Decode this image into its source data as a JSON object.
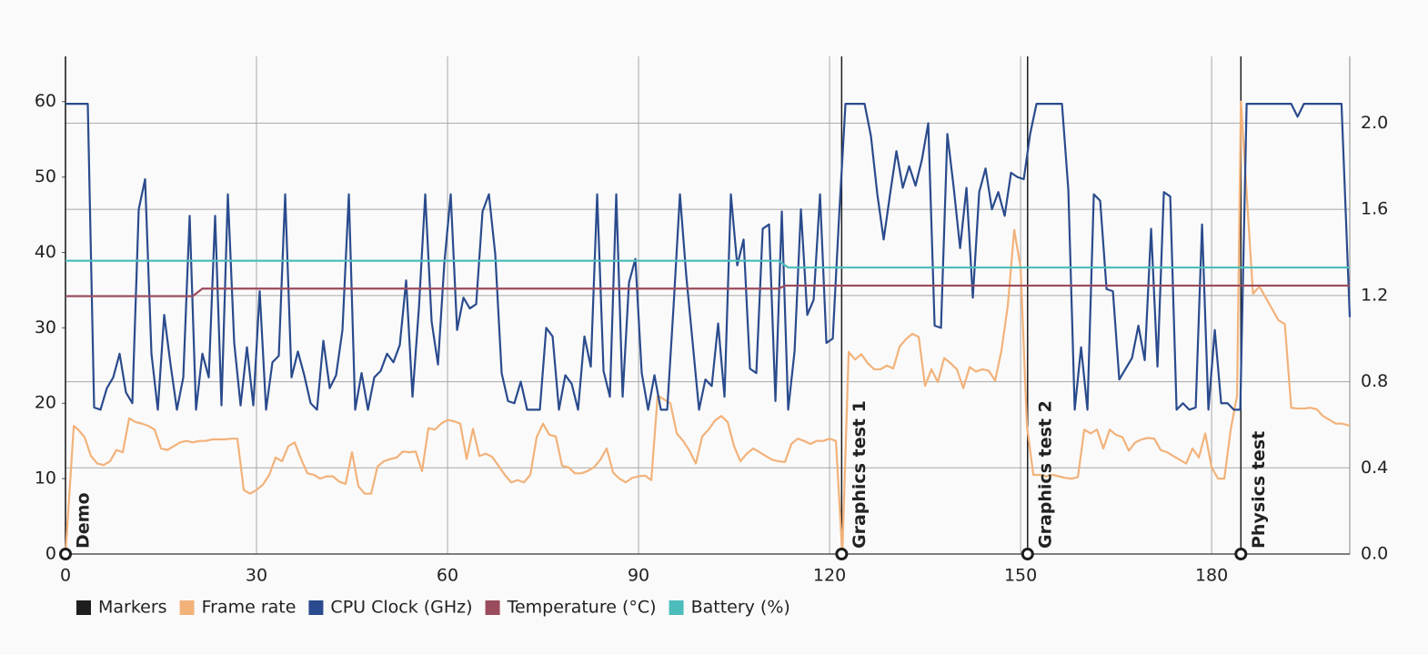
{
  "chart_data": {
    "type": "line",
    "xlim": [
      0,
      201.7
    ],
    "xticks": [
      0,
      30,
      60,
      90,
      120,
      150,
      180
    ],
    "ylim": [
      0,
      66
    ],
    "yticks": [
      0,
      10,
      20,
      30,
      40,
      50,
      60
    ],
    "y2lim": [
      0,
      2.31
    ],
    "y2ticks": [
      {
        "value": 0,
        "label": "0.0"
      },
      {
        "value": 0.4,
        "label": "0.4"
      },
      {
        "value": 0.8,
        "label": "0.8"
      },
      {
        "value": 1.2,
        "label": "1.2"
      },
      {
        "value": 1.6,
        "label": "1.6"
      },
      {
        "value": 2.0,
        "label": "2.0"
      }
    ],
    "grid": true,
    "markers": {
      "name": "Markers",
      "color": "#1e1e1e",
      "x": [
        0,
        121.9,
        151.1,
        184.6
      ],
      "labels": [
        "Demo",
        "Graphics test 1",
        "Graphics test 2",
        "Physics test"
      ]
    },
    "series": [
      {
        "name": "Frame rate",
        "color": "#f2b27a",
        "axis": "y",
        "x": [
          0,
          1.3,
          2,
          3,
          4,
          5,
          6,
          7,
          8,
          9,
          10,
          11,
          12,
          13,
          14,
          15,
          16,
          17,
          18,
          19,
          20,
          21,
          22,
          23,
          24,
          25,
          26,
          27,
          28,
          29,
          30,
          31,
          32,
          33,
          34,
          35,
          36,
          37,
          38,
          39,
          40,
          41,
          42,
          43,
          44,
          45,
          46,
          47,
          48,
          49,
          50,
          51,
          52,
          53,
          54,
          55,
          56,
          57,
          58,
          59,
          60,
          61,
          62,
          63,
          64,
          65,
          66,
          67,
          68,
          69,
          70,
          71,
          72,
          73,
          74,
          75,
          76,
          77,
          78,
          79,
          80,
          81,
          82,
          83,
          84,
          85,
          86,
          87,
          88,
          89,
          90,
          91,
          92,
          93,
          94,
          95,
          96,
          97,
          98,
          99,
          100,
          101,
          102,
          103,
          104,
          105,
          106,
          107,
          108,
          109,
          110,
          111,
          112,
          113,
          114,
          115,
          116,
          117,
          118,
          119,
          120,
          121,
          122,
          123,
          124,
          125,
          126,
          127,
          128,
          129,
          130,
          131,
          132,
          133,
          134,
          135,
          136,
          137,
          138,
          139,
          140,
          141,
          142,
          143,
          144,
          145,
          146,
          147,
          148,
          149,
          150,
          151,
          152,
          153,
          154,
          155,
          156,
          157,
          158,
          159,
          160,
          161,
          162,
          163,
          164,
          165,
          166,
          167,
          168,
          169,
          170,
          171,
          172,
          173,
          174,
          175,
          176,
          177,
          178,
          179,
          180,
          181,
          182,
          183,
          184,
          184.6,
          186.5,
          187.5,
          188.5,
          189.5,
          190.5,
          191.5,
          192.5,
          193.5,
          194.5,
          195.5,
          196.5,
          197.5,
          198.5,
          199.5,
          200.5,
          201.7
        ],
        "values": [
          0,
          17,
          16.5,
          15.5,
          13,
          12,
          11.8,
          12.3,
          13.8,
          13.5,
          18,
          17.5,
          17.3,
          17,
          16.5,
          14,
          13.8,
          14.3,
          14.8,
          15,
          14.8,
          15,
          15,
          15.2,
          15.2,
          15.2,
          15.3,
          15.3,
          8.5,
          8,
          8.5,
          9.2,
          10.5,
          12.8,
          12.3,
          14.3,
          14.8,
          12.6,
          10.7,
          10.5,
          10,
          10.3,
          10.3,
          9.6,
          9.3,
          13.5,
          9,
          8,
          8,
          11.6,
          12.3,
          12.6,
          12.8,
          13.6,
          13.5,
          13.6,
          11,
          16.7,
          16.5,
          17.3,
          17.8,
          17.6,
          17.3,
          12.6,
          16.6,
          13,
          13.3,
          12.9,
          11.7,
          10.5,
          9.5,
          9.8,
          9.5,
          10.5,
          15.5,
          17.3,
          15.8,
          15.6,
          11.7,
          11.5,
          10.7,
          10.7,
          11,
          11.5,
          12.5,
          14,
          10.8,
          10,
          9.5,
          10.1,
          10.3,
          10.4,
          9.8,
          21,
          20.5,
          20,
          16,
          15,
          13.7,
          12,
          15.6,
          16.5,
          17.7,
          18.3,
          17.5,
          14.3,
          12.3,
          13.3,
          14,
          13.5,
          13,
          12.5,
          12.3,
          12.2,
          14.6,
          15.3,
          15,
          14.6,
          15,
          15,
          15.3,
          15,
          0,
          26.8,
          25.8,
          26.5,
          25.3,
          24.5,
          24.5,
          25,
          24.6,
          27.5,
          28.5,
          29.2,
          28.8,
          22.3,
          24.5,
          22.8,
          26,
          25.3,
          24.5,
          22,
          24.8,
          24.2,
          24.5,
          24.3,
          23,
          27,
          33,
          43,
          38,
          17,
          10.5,
          10.5,
          10.3,
          10.5,
          10.3,
          10.1,
          10,
          10.2,
          16.5,
          16,
          16.5,
          14,
          16.5,
          15.8,
          15.5,
          13.7,
          14.8,
          15.2,
          15.4,
          15.3,
          13.8,
          13.5,
          13,
          12.5,
          12,
          14,
          12.8,
          16,
          11.5,
          10,
          10,
          16.5,
          21,
          60,
          34.5,
          35.5,
          34,
          32.5,
          31,
          30.5,
          19.4,
          19.3,
          19.3,
          19.4,
          19.2,
          18.3,
          17.8,
          17.3,
          17.3,
          17
        ]
      },
      {
        "name": "CPU Clock (GHz)",
        "color": "#2a4b8d",
        "axis": "y2",
        "x": [
          0,
          3.5,
          4.5,
          5.5,
          6.5,
          7.5,
          8.5,
          9.5,
          10.5,
          11.5,
          12.5,
          13.5,
          14.5,
          15.5,
          16.5,
          17.5,
          18.5,
          19.5,
          20.5,
          21.5,
          22.5,
          23.5,
          24.5,
          25.5,
          26.5,
          27.5,
          28.5,
          29.5,
          30.5,
          31.5,
          32.5,
          33.5,
          34.5,
          35.5,
          36.5,
          37.5,
          38.5,
          39.5,
          40.5,
          41.5,
          42.5,
          43.5,
          44.5,
          45.5,
          46.5,
          47.5,
          48.5,
          49.5,
          50.5,
          51.5,
          52.5,
          53.5,
          54.5,
          55.5,
          56.5,
          57.5,
          58.5,
          59.5,
          60.5,
          61.5,
          62.5,
          63.5,
          64.5,
          65.5,
          66.5,
          67.5,
          68.5,
          69.5,
          70.5,
          71.5,
          72.5,
          73.5,
          74.5,
          75.5,
          76.5,
          77.5,
          78.5,
          79.5,
          80.5,
          81.5,
          82.5,
          83.5,
          84.5,
          85.5,
          86.5,
          87.5,
          88.5,
          89.5,
          90.5,
          91.5,
          92.5,
          93.5,
          94.5,
          95.5,
          96.5,
          97.5,
          98.5,
          99.5,
          100.5,
          101.5,
          102.5,
          103.5,
          104.5,
          105.5,
          106.5,
          107.5,
          108.5,
          109.5,
          110.5,
          111.5,
          112.5,
          113.5,
          114.5,
          115.5,
          116.5,
          117.5,
          118.5,
          119.5,
          120.5,
          121.5,
          122.5,
          125.5,
          126.5,
          127.5,
          128.5,
          129.5,
          130.5,
          131.5,
          132.5,
          133.5,
          134.5,
          135.5,
          136.5,
          137.5,
          138.5,
          139.5,
          140.5,
          141.5,
          142.5,
          143.5,
          144.5,
          145.5,
          146.5,
          147.5,
          148.5,
          149.5,
          150.5,
          151.5,
          152.5,
          156.5,
          157.5,
          158.5,
          159.5,
          160.5,
          161.5,
          162.5,
          163.5,
          164.5,
          165.5,
          166.5,
          167.5,
          168.5,
          169.5,
          170.5,
          171.5,
          172.5,
          173.5,
          174.5,
          175.5,
          176.5,
          177.5,
          178.5,
          179.5,
          180.5,
          181.5,
          182.5,
          183.5,
          184.5,
          185.5,
          192.5,
          193.5,
          194.5,
          196.5,
          200.4,
          201.7
        ],
        "values": [
          2.09,
          2.09,
          0.68,
          0.67,
          0.77,
          0.82,
          0.93,
          0.75,
          0.7,
          1.6,
          1.74,
          0.93,
          0.67,
          1.11,
          0.88,
          0.67,
          0.82,
          1.57,
          0.67,
          0.93,
          0.82,
          1.57,
          0.69,
          1.67,
          0.98,
          0.69,
          0.96,
          0.69,
          1.22,
          0.67,
          0.89,
          0.92,
          1.67,
          0.82,
          0.94,
          0.83,
          0.7,
          0.67,
          0.99,
          0.77,
          0.83,
          1.04,
          1.67,
          0.67,
          0.84,
          0.67,
          0.82,
          0.85,
          0.93,
          0.89,
          0.97,
          1.27,
          0.73,
          1.14,
          1.67,
          1.08,
          0.88,
          1.35,
          1.67,
          1.04,
          1.19,
          1.14,
          1.16,
          1.59,
          1.67,
          1.39,
          0.84,
          0.71,
          0.7,
          0.8,
          0.67,
          0.67,
          0.67,
          1.05,
          1.01,
          0.67,
          0.83,
          0.79,
          0.67,
          1.01,
          0.87,
          1.67,
          0.85,
          0.73,
          1.67,
          0.73,
          1.26,
          1.37,
          0.84,
          0.67,
          0.83,
          0.67,
          0.67,
          1.15,
          1.67,
          1.29,
          0.98,
          0.67,
          0.81,
          0.78,
          1.07,
          0.73,
          1.67,
          1.34,
          1.46,
          0.86,
          0.84,
          1.51,
          1.53,
          0.71,
          1.59,
          0.67,
          0.94,
          1.6,
          1.11,
          1.18,
          1.67,
          0.98,
          1.0,
          1.57,
          2.09,
          2.09,
          1.94,
          1.67,
          1.46,
          1.67,
          1.87,
          1.7,
          1.8,
          1.71,
          1.83,
          2.0,
          1.06,
          1.05,
          1.95,
          1.7,
          1.42,
          1.7,
          1.19,
          1.68,
          1.79,
          1.6,
          1.68,
          1.57,
          1.77,
          1.75,
          1.74,
          1.95,
          2.09,
          2.09,
          1.69,
          0.67,
          0.96,
          0.67,
          1.67,
          1.64,
          1.23,
          1.22,
          0.81,
          0.86,
          0.91,
          1.06,
          0.9,
          1.51,
          0.87,
          1.68,
          1.66,
          0.67,
          0.7,
          0.67,
          0.68,
          1.53,
          0.67,
          1.04,
          0.7,
          0.7,
          0.67,
          0.67,
          2.09,
          2.09,
          2.03,
          2.09,
          2.09,
          2.09,
          1.1
        ]
      },
      {
        "name": "Temperature (°C)",
        "color": "#9a4b5c",
        "axis": "y",
        "x": [
          0,
          20,
          21.5,
          112,
          113,
          201.7
        ],
        "values": [
          34.2,
          34.2,
          35.2,
          35.2,
          35.6,
          35.6
        ]
      },
      {
        "name": "Battery (%)",
        "color": "#4dbdbb",
        "axis": "y",
        "x": [
          0,
          112,
          113.5,
          201.7
        ],
        "values": [
          38.9,
          38.9,
          38.0,
          38.0
        ]
      }
    ]
  }
}
